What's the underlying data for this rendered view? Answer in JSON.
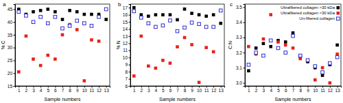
{
  "chart_data": [
    {
      "type": "scatter",
      "title": "a",
      "x_label": "Sample numbers",
      "y_label": "% C",
      "x": [
        1,
        2,
        3,
        4,
        5,
        6,
        7,
        8,
        9,
        10,
        11,
        12,
        13
      ],
      "xlim": [
        0.5,
        13.5
      ],
      "xticks": [
        1,
        2,
        3,
        4,
        5,
        6,
        7,
        8,
        9,
        10,
        11,
        12,
        13
      ],
      "ylim": [
        15,
        47
      ],
      "yticks": [
        15,
        20,
        25,
        30,
        35,
        40,
        45
      ],
      "series": [
        {
          "color": "#000000",
          "marker": "square",
          "values": [
            45,
            43,
            44,
            44.5,
            45,
            44,
            41,
            44.5,
            44,
            43,
            43,
            43,
            41
          ]
        },
        {
          "color": "#e8221b",
          "marker": "square",
          "values": [
            20.5,
            34.5,
            25.5,
            23,
            27,
            25.5,
            35,
            39,
            37,
            17,
            33,
            32.5,
            null
          ]
        },
        {
          "color": "#2a2ad6",
          "marker": "square-open",
          "values": [
            44,
            42.5,
            40,
            42,
            39.5,
            42,
            37.5,
            38.5,
            40.5,
            39.5,
            38.5,
            42,
            45
          ]
        }
      ]
    },
    {
      "type": "scatter",
      "title": "b",
      "x_label": "Sample numbers",
      "y_label": "% N",
      "x": [
        1,
        2,
        3,
        4,
        5,
        6,
        7,
        8,
        9,
        10,
        11,
        12,
        13
      ],
      "xlim": [
        0.5,
        13.5
      ],
      "xticks": [
        1,
        2,
        3,
        4,
        5,
        6,
        7,
        8,
        9,
        10,
        11,
        12,
        13
      ],
      "ylim": [
        6,
        17.5
      ],
      "yticks": [
        6,
        7,
        8,
        9,
        10,
        11,
        12,
        13,
        14,
        15,
        16,
        17
      ],
      "series": [
        {
          "color": "#000000",
          "marker": "square",
          "values": [
            17,
            16,
            15.8,
            16,
            16,
            16,
            15.3,
            16.8,
            16.2,
            16,
            15.8,
            16,
            14.8
          ]
        },
        {
          "color": "#e8221b",
          "marker": "square",
          "values": [
            7.4,
            13,
            8.8,
            8.5,
            9.6,
            9.2,
            11.5,
            12.8,
            11.8,
            6.5,
            11.4,
            10.8,
            null
          ]
        },
        {
          "color": "#2a2ad6",
          "marker": "square-open",
          "values": [
            16.5,
            15.6,
            14.8,
            14.3,
            14.5,
            15.2,
            13.7,
            14.2,
            14.9,
            14.7,
            14.3,
            14.3,
            16.6
          ]
        }
      ]
    },
    {
      "type": "scatter",
      "title": "c",
      "x_label": "Sample numbers",
      "y_label": "C:N",
      "x": [
        1,
        2,
        3,
        4,
        5,
        6,
        7,
        8,
        9,
        10,
        11,
        12,
        13
      ],
      "xlim": [
        0.5,
        13.5
      ],
      "xticks": [
        1,
        2,
        3,
        4,
        5,
        6,
        7,
        8,
        9,
        10,
        11,
        12,
        13
      ],
      "ylim": [
        2.98,
        3.52
      ],
      "yticks": [
        {
          "value": 3,
          "label": "3.0"
        },
        {
          "value": 3.1,
          "label": "3.1"
        },
        {
          "value": 3.2,
          "label": "3.2"
        },
        {
          "value": 3.3,
          "label": "3.3"
        },
        {
          "value": 3.4,
          "label": "3.4"
        },
        {
          "value": 3.5,
          "label": "3.5"
        }
      ],
      "legend": "upper right",
      "series": [
        {
          "name": "Ultrafiltered collagen >30 kDa",
          "color": "#000000",
          "marker": "square",
          "values": [
            3.08,
            3.23,
            3.26,
            3.24,
            3.28,
            3.27,
            3.33,
            3.17,
            3.14,
            3.1,
            3.05,
            3.12,
            3.25
          ]
        },
        {
          "name": "Ultrafiltered collagen <30 kDa",
          "color": "#e8221b",
          "marker": "square",
          "values": [
            3.24,
            3.19,
            3.29,
            3.45,
            3.27,
            3.25,
            3.23,
            3.16,
            3.15,
            3.02,
            3.1,
            3.0,
            3.19
          ]
        },
        {
          "name": "Un-filtered collagen",
          "color": "#2a2ad6",
          "marker": "square-open",
          "values": [
            3.12,
            3.2,
            3.18,
            3.28,
            3.23,
            3.2,
            3.31,
            3.18,
            3.15,
            3.11,
            3.07,
            3.13,
            3.17
          ]
        }
      ]
    }
  ]
}
